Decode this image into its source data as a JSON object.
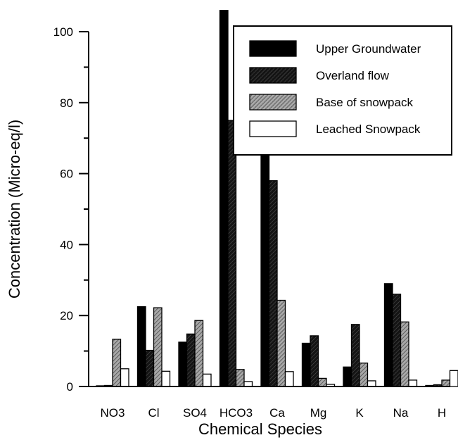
{
  "chart_data": {
    "type": "bar",
    "title": "",
    "xlabel": "Chemical Species",
    "ylabel": "Concentration (Micro-eq/l)",
    "ylim": [
      0,
      100
    ],
    "yticks": [
      "0",
      "20",
      "40",
      "60",
      "80",
      "100"
    ],
    "categories": [
      "NO3",
      "Cl",
      "SO4",
      "HCO3",
      "Ca",
      "Mg",
      "K",
      "Na",
      "H"
    ],
    "legend_position": "top-right",
    "grid": false,
    "series": [
      {
        "name": "Upper Groundwater",
        "color": "#000000",
        "pattern": "solid",
        "values": [
          0.2,
          22.5,
          12.5,
          106,
          65,
          12.2,
          5.5,
          29,
          0.3
        ]
      },
      {
        "name": "Overland flow",
        "color": "#1a1a1a",
        "pattern": "dark-hatch",
        "values": [
          0.3,
          10.2,
          14.8,
          75,
          58,
          14.3,
          17.5,
          26,
          0.5
        ]
      },
      {
        "name": "Base of snowpack",
        "color": "#7a7a7a",
        "pattern": "gray-hatch",
        "values": [
          13.3,
          22.2,
          18.6,
          4.8,
          24.3,
          2.3,
          6.6,
          18.2,
          1.8
        ]
      },
      {
        "name": "Leached Snowpack",
        "color": "#ffffff",
        "pattern": "white",
        "values": [
          5.0,
          4.3,
          3.5,
          1.4,
          4.2,
          0.6,
          1.6,
          1.8,
          4.5
        ]
      }
    ]
  }
}
